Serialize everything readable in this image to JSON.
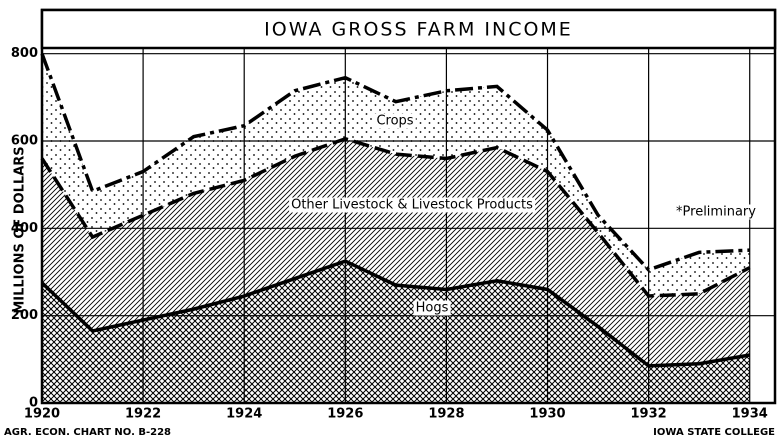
{
  "chart_data": {
    "type": "stacked_area",
    "title": "IOWA GROSS FARM INCOME",
    "y_label": "MILLIONS OF DOLLARS",
    "footer_left": "AGR. ECON. CHART NO. B-228",
    "footer_right": "IOWA STATE COLLEGE",
    "note": "*Preliminary",
    "x": [
      1920,
      1921,
      1922,
      1923,
      1924,
      1925,
      1926,
      1927,
      1928,
      1929,
      1930,
      1931,
      1932,
      1933,
      1934
    ],
    "series": [
      {
        "name": "Hogs",
        "color": "#000000",
        "values": [
          275,
          165,
          190,
          215,
          245,
          285,
          325,
          270,
          260,
          280,
          260,
          175,
          85,
          90,
          110
        ]
      },
      {
        "name": "Other Livestock & Livestock Products",
        "color": "#000000",
        "values": [
          285,
          215,
          240,
          265,
          265,
          280,
          280,
          300,
          300,
          305,
          270,
          215,
          160,
          160,
          200
        ]
      },
      {
        "name": "Crops",
        "color": "#000000",
        "values": [
          240,
          105,
          100,
          130,
          125,
          150,
          140,
          120,
          155,
          140,
          95,
          40,
          60,
          95,
          40
        ]
      }
    ],
    "xlim": [
      1920,
      1934.5
    ],
    "xticks": [
      1920,
      1922,
      1924,
      1926,
      1928,
      1930,
      1932,
      1934
    ],
    "ylim": [
      0,
      900
    ],
    "yticks": [
      0,
      200,
      400,
      600,
      800
    ],
    "grid": true
  }
}
